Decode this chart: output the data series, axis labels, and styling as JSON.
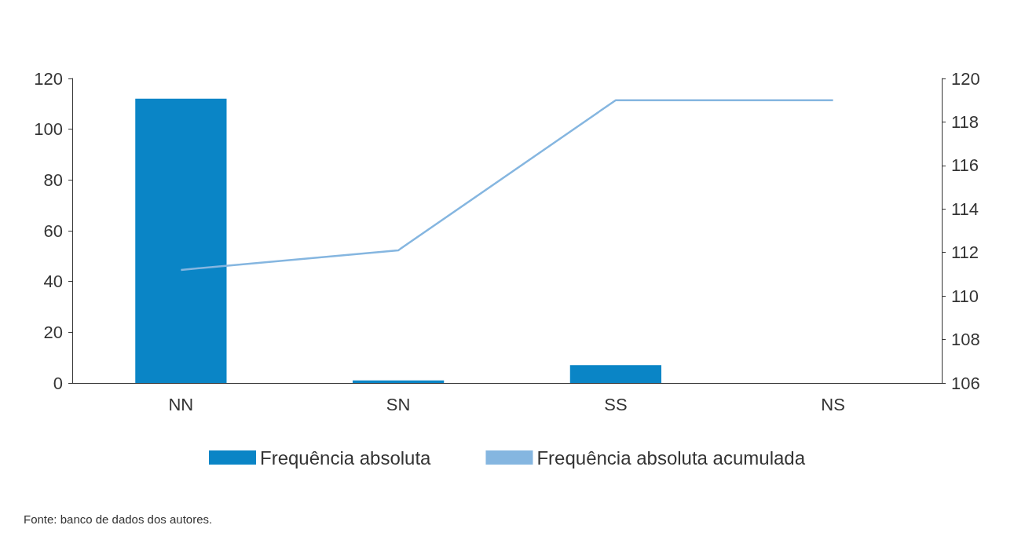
{
  "chart_data": {
    "type": "bar",
    "categories": [
      "NN",
      "SN",
      "SS",
      "NS"
    ],
    "series": [
      {
        "name": "Frequência absoluta",
        "color": "#0a85c6",
        "values": [
          112,
          1,
          7,
          0
        ]
      },
      {
        "name": "Frequência absoluta acumulada",
        "type": "line",
        "color": "#85b6e0",
        "axis": "y2",
        "values": [
          111.2,
          112.1,
          119,
          119
        ]
      }
    ],
    "ylim": [
      0,
      120
    ],
    "yticks": [
      0,
      20,
      40,
      60,
      80,
      100,
      120
    ],
    "y2lim": [
      106,
      120
    ],
    "y2ticks": [
      106,
      108,
      110,
      112,
      114,
      116,
      118,
      120
    ],
    "legend": "bottom",
    "marker": "none",
    "line_style": "solid",
    "annotations": [
      "Fonte: banco de dados dos autores."
    ]
  }
}
